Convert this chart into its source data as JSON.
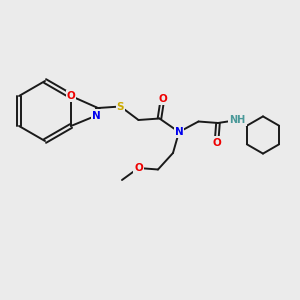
{
  "background_color": "#ebebeb",
  "bond_color": "#1a1a1a",
  "atom_colors": {
    "N": "#0000ee",
    "O": "#ee0000",
    "S": "#ccaa00",
    "H": "#4a9999",
    "C": "#1a1a1a"
  },
  "font_size": 7.5,
  "lw": 1.4
}
